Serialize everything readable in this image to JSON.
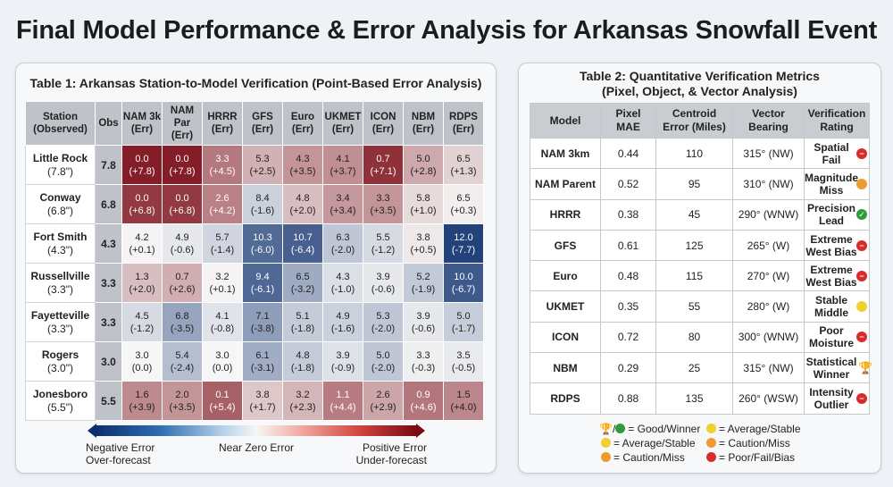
{
  "page_title": "Final Model Performance & Error Analysis for Arkansas Snowfall Event",
  "table1": {
    "title": "Table 1: Arkansas Station-to-Model Verification (Point-Based Error Analysis)",
    "headers": [
      "Station (Observed)",
      "Obs",
      "NAM 3k (Err)",
      "NAM Par (Err)",
      "HRRR (Err)",
      "GFS (Err)",
      "Euro (Err)",
      "UKMET (Err)",
      "ICON (Err)",
      "NBM (Err)",
      "RDPS (Err)"
    ]
  },
  "chart_data": {
    "type": "heatmap",
    "title": "Table 1: Arkansas Station-to-Model Verification (Point-Based Error Analysis)",
    "models": [
      "NAM 3k",
      "NAM Par",
      "HRRR",
      "GFS",
      "Euro",
      "UKMET",
      "ICON",
      "NBM",
      "RDPS"
    ],
    "color_scale": {
      "negative": "#0d2f6e",
      "zero": "#f6f6f6",
      "positive": "#7a0a14"
    },
    "stations": [
      {
        "name": "Little Rock",
        "obs_label": "(7.8\")",
        "obs": "7.8",
        "forecast": [
          "0.0",
          "0.0",
          "3.3",
          "5.3",
          "4.3",
          "4.1",
          "0.7",
          "5.0",
          "6.5"
        ],
        "error": [
          "(+7.8)",
          "(+7.8)",
          "(+4.5)",
          "(+2.5)",
          "(+3.5)",
          "(+3.7)",
          "(+7.1)",
          "(+2.8)",
          "(+1.3)"
        ],
        "error_values": [
          7.8,
          7.8,
          4.5,
          2.5,
          3.5,
          3.7,
          7.1,
          2.8,
          1.3
        ]
      },
      {
        "name": "Conway",
        "obs_label": "(6.8\")",
        "obs": "6.8",
        "forecast": [
          "0.0",
          "0.0",
          "2.6",
          "8.4",
          "4.8",
          "3.4",
          "3.3",
          "5.8",
          "6.5"
        ],
        "error": [
          "(+6.8)",
          "(+6.8)",
          "(+4.2)",
          "(-1.6)",
          "(+2.0)",
          "(+3.4)",
          "(+3.5)",
          "(+1.0)",
          "(+0.3)"
        ],
        "error_values": [
          6.8,
          6.8,
          4.2,
          -1.6,
          2.0,
          3.4,
          3.5,
          1.0,
          0.3
        ]
      },
      {
        "name": "Fort Smith",
        "obs_label": "(4.3\")",
        "obs": "4.3",
        "forecast": [
          "4.2",
          "4.9",
          "5.7",
          "10.3",
          "10.7",
          "6.3",
          "5.5",
          "3.8",
          "12.0"
        ],
        "error": [
          "(+0.1)",
          "(-0.6)",
          "(-1.4)",
          "(-6.0)",
          "(-6.4)",
          "(-2.0)",
          "(-1.2)",
          "(+0.5)",
          "(-7.7)"
        ],
        "error_values": [
          0.1,
          -0.6,
          -1.4,
          -6.0,
          -6.4,
          -2.0,
          -1.2,
          0.5,
          -7.7
        ]
      },
      {
        "name": "Russellville",
        "obs_label": "(3.3\")",
        "obs": "3.3",
        "forecast": [
          "1.3",
          "0.7",
          "3.2",
          "9.4",
          "6.5",
          "4.3",
          "3.9",
          "5.2",
          "10.0"
        ],
        "error": [
          "(+2.0)",
          "(+2.6)",
          "(+0.1)",
          "(-6.1)",
          "(-3.2)",
          "(-1.0)",
          "(-0.6)",
          "(-1.9)",
          "(-6.7)"
        ],
        "error_values": [
          2.0,
          2.6,
          0.1,
          -6.1,
          -3.2,
          -1.0,
          -0.6,
          -1.9,
          -6.7
        ]
      },
      {
        "name": "Fayetteville",
        "obs_label": "(3.3\")",
        "obs": "3.3",
        "forecast": [
          "4.5",
          "6.8",
          "4.1",
          "7.1",
          "5.1",
          "4.9",
          "5.3",
          "3.9",
          "5.0"
        ],
        "error": [
          "(-1.2)",
          "(-3.5)",
          "(-0.8)",
          "(-3.8)",
          "(-1.8)",
          "(-1.6)",
          "(-2.0)",
          "(-0.6)",
          "(-1.7)"
        ],
        "error_values": [
          -1.2,
          -3.5,
          -0.8,
          -3.8,
          -1.8,
          -1.6,
          -2.0,
          -0.6,
          -1.7
        ]
      },
      {
        "name": "Rogers",
        "obs_label": "(3.0\")",
        "obs": "3.0",
        "forecast": [
          "3.0",
          "5.4",
          "3.0",
          "6.1",
          "4.8",
          "3.9",
          "5.0",
          "3.3",
          "3.5"
        ],
        "error": [
          "(0.0)",
          "(-2.4)",
          "(0.0)",
          "(-3.1)",
          "(-1.8)",
          "(-0.9)",
          "(-2.0)",
          "(-0.3)",
          "(-0.5)"
        ],
        "error_values": [
          0.0,
          -2.4,
          0.0,
          -3.1,
          -1.8,
          -0.9,
          -2.0,
          -0.3,
          -0.5
        ]
      },
      {
        "name": "Jonesboro",
        "obs_label": "(5.5\")",
        "obs": "5.5",
        "forecast": [
          "1.6",
          "2.0",
          "0.1",
          "3.8",
          "3.2",
          "1.1",
          "2.6",
          "0.9",
          "1.5"
        ],
        "error": [
          "(+3.9)",
          "(+3.5)",
          "(+5.4)",
          "(+1.7)",
          "(+2.3)",
          "(+4.4)",
          "(+2.9)",
          "(+4.6)",
          "(+4.0)"
        ],
        "error_values": [
          3.9,
          3.5,
          5.4,
          1.7,
          2.3,
          4.4,
          2.9,
          4.6,
          4.0
        ]
      }
    ],
    "legend": {
      "negative": [
        "Negative Error",
        "Over-forecast"
      ],
      "zero": "Near Zero Error",
      "positive": [
        "Positive Error",
        "Under-forecast"
      ]
    }
  },
  "table2": {
    "title_line1": "Table 2: Quantitative Verification Metrics",
    "title_line2": "(Pixel, Object, & Vector Analysis)",
    "headers": [
      [
        "Model"
      ],
      [
        "Pixel",
        "MAE"
      ],
      [
        "Centroid",
        "Error (Miles)"
      ],
      [
        "Vector",
        "Bearing"
      ],
      [
        "Verification",
        "Rating"
      ]
    ],
    "rows": [
      {
        "model": "NAM 3km",
        "mae": "0.44",
        "centroid": "110",
        "bearing": "315° (NW)",
        "rating": [
          "Spatial",
          "Fail"
        ],
        "status": "red"
      },
      {
        "model": "NAM Parent",
        "mae": "0.52",
        "centroid": "95",
        "bearing": "310° (NW)",
        "rating": [
          "Magnitude",
          "Miss"
        ],
        "status": "orange"
      },
      {
        "model": "HRRR",
        "mae": "0.38",
        "centroid": "45",
        "bearing": "290° (WNW)",
        "rating": [
          "Precision",
          "Lead"
        ],
        "status": "green"
      },
      {
        "model": "GFS",
        "mae": "0.61",
        "centroid": "125",
        "bearing": "265° (W)",
        "rating": [
          "Extreme",
          "West Bias"
        ],
        "status": "red"
      },
      {
        "model": "Euro",
        "mae": "0.48",
        "centroid": "115",
        "bearing": "270° (W)",
        "rating": [
          "Extreme",
          "West Bias"
        ],
        "status": "red"
      },
      {
        "model": "UKMET",
        "mae": "0.35",
        "centroid": "55",
        "bearing": "280° (W)",
        "rating": [
          "Stable",
          "Middle"
        ],
        "status": "yellow"
      },
      {
        "model": "ICON",
        "mae": "0.72",
        "centroid": "80",
        "bearing": "300° (WNW)",
        "rating": [
          "Poor",
          "Moisture"
        ],
        "status": "red"
      },
      {
        "model": "NBM",
        "mae": "0.29",
        "centroid": "25",
        "bearing": "315° (NW)",
        "rating": [
          "Statistical",
          "Winner"
        ],
        "status": "trophy"
      },
      {
        "model": "RDPS",
        "mae": "0.88",
        "centroid": "135",
        "bearing": "260° (WSW)",
        "rating": [
          "Intensity",
          "Outlier"
        ],
        "status": "red"
      }
    ],
    "key": {
      "good": "= Good/Winner",
      "average_right": "= Average/Stable",
      "average_left": "= Average/Stable",
      "caution_right": "= Caution/Miss",
      "caution_left": "= Caution/Miss",
      "poor": "= Poor/Fail/Bias"
    }
  }
}
